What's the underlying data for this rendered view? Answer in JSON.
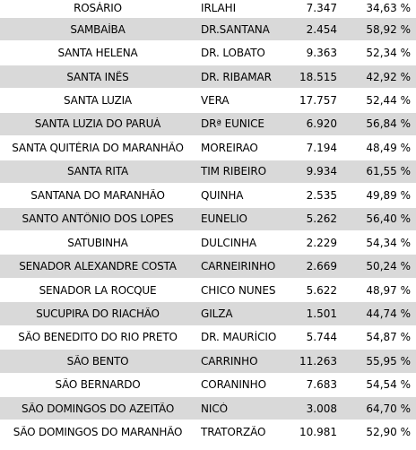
{
  "rows": [
    {
      "city": "ROSÁRIO",
      "candidate": "IRLAHI",
      "votes": "7.347",
      "percent": "34,63 %"
    },
    {
      "city": "SAMBAÍBA",
      "candidate": "DR.SANTANA",
      "votes": "2.454",
      "percent": "58,92 %"
    },
    {
      "city": "SANTA HELENA",
      "candidate": "DR. LOBATO",
      "votes": "9.363",
      "percent": "52,34 %"
    },
    {
      "city": "SANTA INÊS",
      "candidate": "DR. RIBAMAR",
      "votes": "18.515",
      "percent": "42,92 %"
    },
    {
      "city": "SANTA LUZIA",
      "candidate": "VERA",
      "votes": "17.757",
      "percent": "52,44 %"
    },
    {
      "city": "SANTA LUZIA DO PARUÁ",
      "candidate": "DRª EUNICE",
      "votes": "6.920",
      "percent": "56,84 %"
    },
    {
      "city": "SANTA QUITÉRIA DO MARANHÃO",
      "candidate": "MOREIRAO",
      "votes": "7.194",
      "percent": "48,49 %"
    },
    {
      "city": "SANTA RITA",
      "candidate": "TIM RIBEIRO",
      "votes": "9.934",
      "percent": "61,55 %"
    },
    {
      "city": "SANTANA DO MARANHÃO",
      "candidate": "QUINHA",
      "votes": "2.535",
      "percent": "49,89 %"
    },
    {
      "city": "SANTO ANTÔNIO DOS LOPES",
      "candidate": "EUNELIO",
      "votes": "5.262",
      "percent": "56,40 %"
    },
    {
      "city": "SATUBINHA",
      "candidate": "DULCINHA",
      "votes": "2.229",
      "percent": "54,34 %"
    },
    {
      "city": "SENADOR ALEXANDRE COSTA",
      "candidate": "CARNEIRINHO",
      "votes": "2.669",
      "percent": "50,24 %"
    },
    {
      "city": "SENADOR LA ROCQUE",
      "candidate": "CHICO NUNES",
      "votes": "5.622",
      "percent": "48,97 %"
    },
    {
      "city": "SUCUPIRA DO RIACHÃO",
      "candidate": "GILZA",
      "votes": "1.501",
      "percent": "44,74 %"
    },
    {
      "city": "SÃO BENEDITO DO RIO PRETO",
      "candidate": "DR. MAURÍCIO",
      "votes": "5.744",
      "percent": "54,87 %"
    },
    {
      "city": "SÃO BENTO",
      "candidate": "CARRINHO",
      "votes": "11.263",
      "percent": "55,95 %"
    },
    {
      "city": "SÃO BERNARDO",
      "candidate": "CORANINHO",
      "votes": "7.683",
      "percent": "54,54 %"
    },
    {
      "city": "SÃO DOMINGOS DO AZEITÃO",
      "candidate": "NICÓ",
      "votes": "3.008",
      "percent": "64,70 %"
    },
    {
      "city": "SÃO DOMINGOS DO MARANHÃO",
      "candidate": "TRATORZÃO",
      "votes": "10.981",
      "percent": "52,90 %"
    }
  ]
}
